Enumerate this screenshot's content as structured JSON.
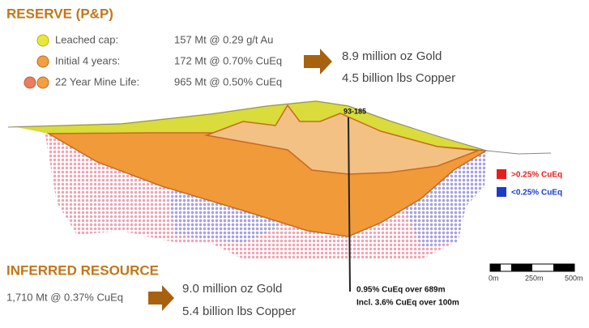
{
  "reserve": {
    "title": "RESERVE (P&P)",
    "rows": [
      {
        "label": "Leached cap:",
        "value": "157 Mt @ 0.29 g/t Au"
      },
      {
        "label": "Initial 4 years:",
        "value": "172 Mt @ 0.70% CuEq"
      },
      {
        "label": "22 Year Mine Life:",
        "value": "965 Mt @ 0.50% CuEq"
      }
    ],
    "totals": [
      "8.9 million oz Gold",
      "4.5 billion lbs Copper"
    ]
  },
  "inferred": {
    "title": "INFERRED RESOURCE",
    "summary": "1,710 Mt @ 0.37% CuEq",
    "totals": [
      "9.0 million oz Gold",
      "5.4 billion lbs Copper"
    ]
  },
  "drill_hole": {
    "id": "93-185",
    "notes": [
      "0.95% CuEq over 689m",
      "Incl. 3.6% CuEq over 100m"
    ]
  },
  "grade_legend": [
    ">0.25% CuEq",
    "<0.25% CuEq"
  ],
  "scale_bar": [
    "0m",
    "250m",
    "500m"
  ]
}
